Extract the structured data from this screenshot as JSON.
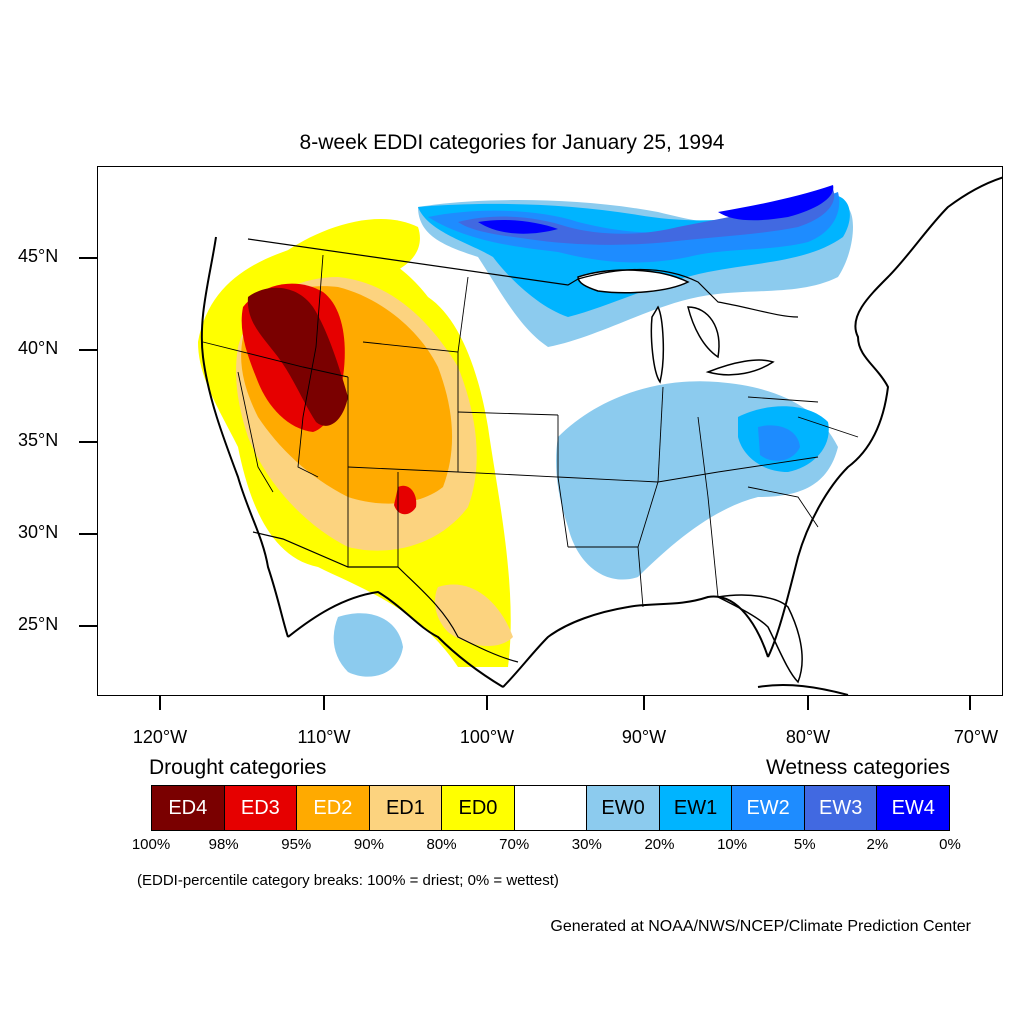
{
  "title": "8-week EDDI categories for January 25, 1994",
  "map": {
    "lat_labels": [
      "45°N",
      "40°N",
      "35°N",
      "30°N",
      "25°N"
    ],
    "lon_labels": [
      "120°W",
      "110°W",
      "100°W",
      "90°W",
      "80°W",
      "70°W"
    ]
  },
  "legend": {
    "drought_heading": "Drought categories",
    "wetness_heading": "Wetness categories",
    "categories": [
      {
        "label": "ED4",
        "color": "#7a0000",
        "text_color": "#ffffff"
      },
      {
        "label": "ED3",
        "color": "#e60000",
        "text_color": "#ffffff"
      },
      {
        "label": "ED2",
        "color": "#ffaa00",
        "text_color": "#ffffff"
      },
      {
        "label": "ED1",
        "color": "#fcd37f",
        "text_color": "#000000"
      },
      {
        "label": "ED0",
        "color": "#ffff00",
        "text_color": "#000000"
      },
      {
        "label": "",
        "color": "#ffffff",
        "text_color": "#000000"
      },
      {
        "label": "EW0",
        "color": "#8ccbee",
        "text_color": "#000000"
      },
      {
        "label": "EW1",
        "color": "#00b4ff",
        "text_color": "#000000"
      },
      {
        "label": "EW2",
        "color": "#1e8cff",
        "text_color": "#ffffff"
      },
      {
        "label": "EW3",
        "color": "#4169e1",
        "text_color": "#ffffff"
      },
      {
        "label": "EW4",
        "color": "#0000ff",
        "text_color": "#ffffff"
      }
    ],
    "breaks": [
      "100%",
      "98%",
      "95%",
      "90%",
      "80%",
      "70%",
      "30%",
      "20%",
      "10%",
      "5%",
      "2%",
      "0%"
    ]
  },
  "note": "(EDDI-percentile category breaks: 100% = driest; 0% = wettest)",
  "credit": "Generated at NOAA/NWS/NCEP/Climate Prediction Center"
}
